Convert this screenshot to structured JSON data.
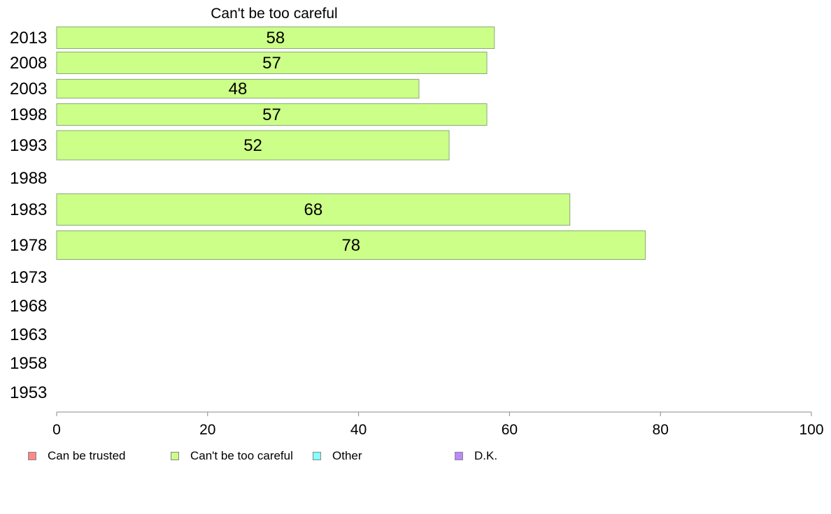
{
  "chart_data": {
    "type": "bar",
    "orientation": "horizontal",
    "title": "Can't be too careful",
    "categories": [
      "2013",
      "2008",
      "2003",
      "1998",
      "1993",
      "1988",
      "1983",
      "1978",
      "1973",
      "1968",
      "1963",
      "1958",
      "1953"
    ],
    "series": [
      {
        "name": "Can't be too careful",
        "color": "#ccff88",
        "values": [
          58,
          57,
          48,
          57,
          52,
          null,
          68,
          78,
          null,
          null,
          null,
          null,
          null
        ]
      }
    ],
    "xlim": [
      0,
      100
    ],
    "xticks": [
      "0",
      "20",
      "40",
      "60",
      "80",
      "100"
    ],
    "grid": false,
    "legend_position": "bottom",
    "legend": [
      {
        "label": "Can be trusted",
        "color": "#ff8888"
      },
      {
        "label": "Can't be too careful",
        "color": "#ccff88"
      },
      {
        "label": "Other",
        "color": "#88ffff"
      },
      {
        "label": "D.K.",
        "color": "#bb88ff"
      }
    ]
  }
}
